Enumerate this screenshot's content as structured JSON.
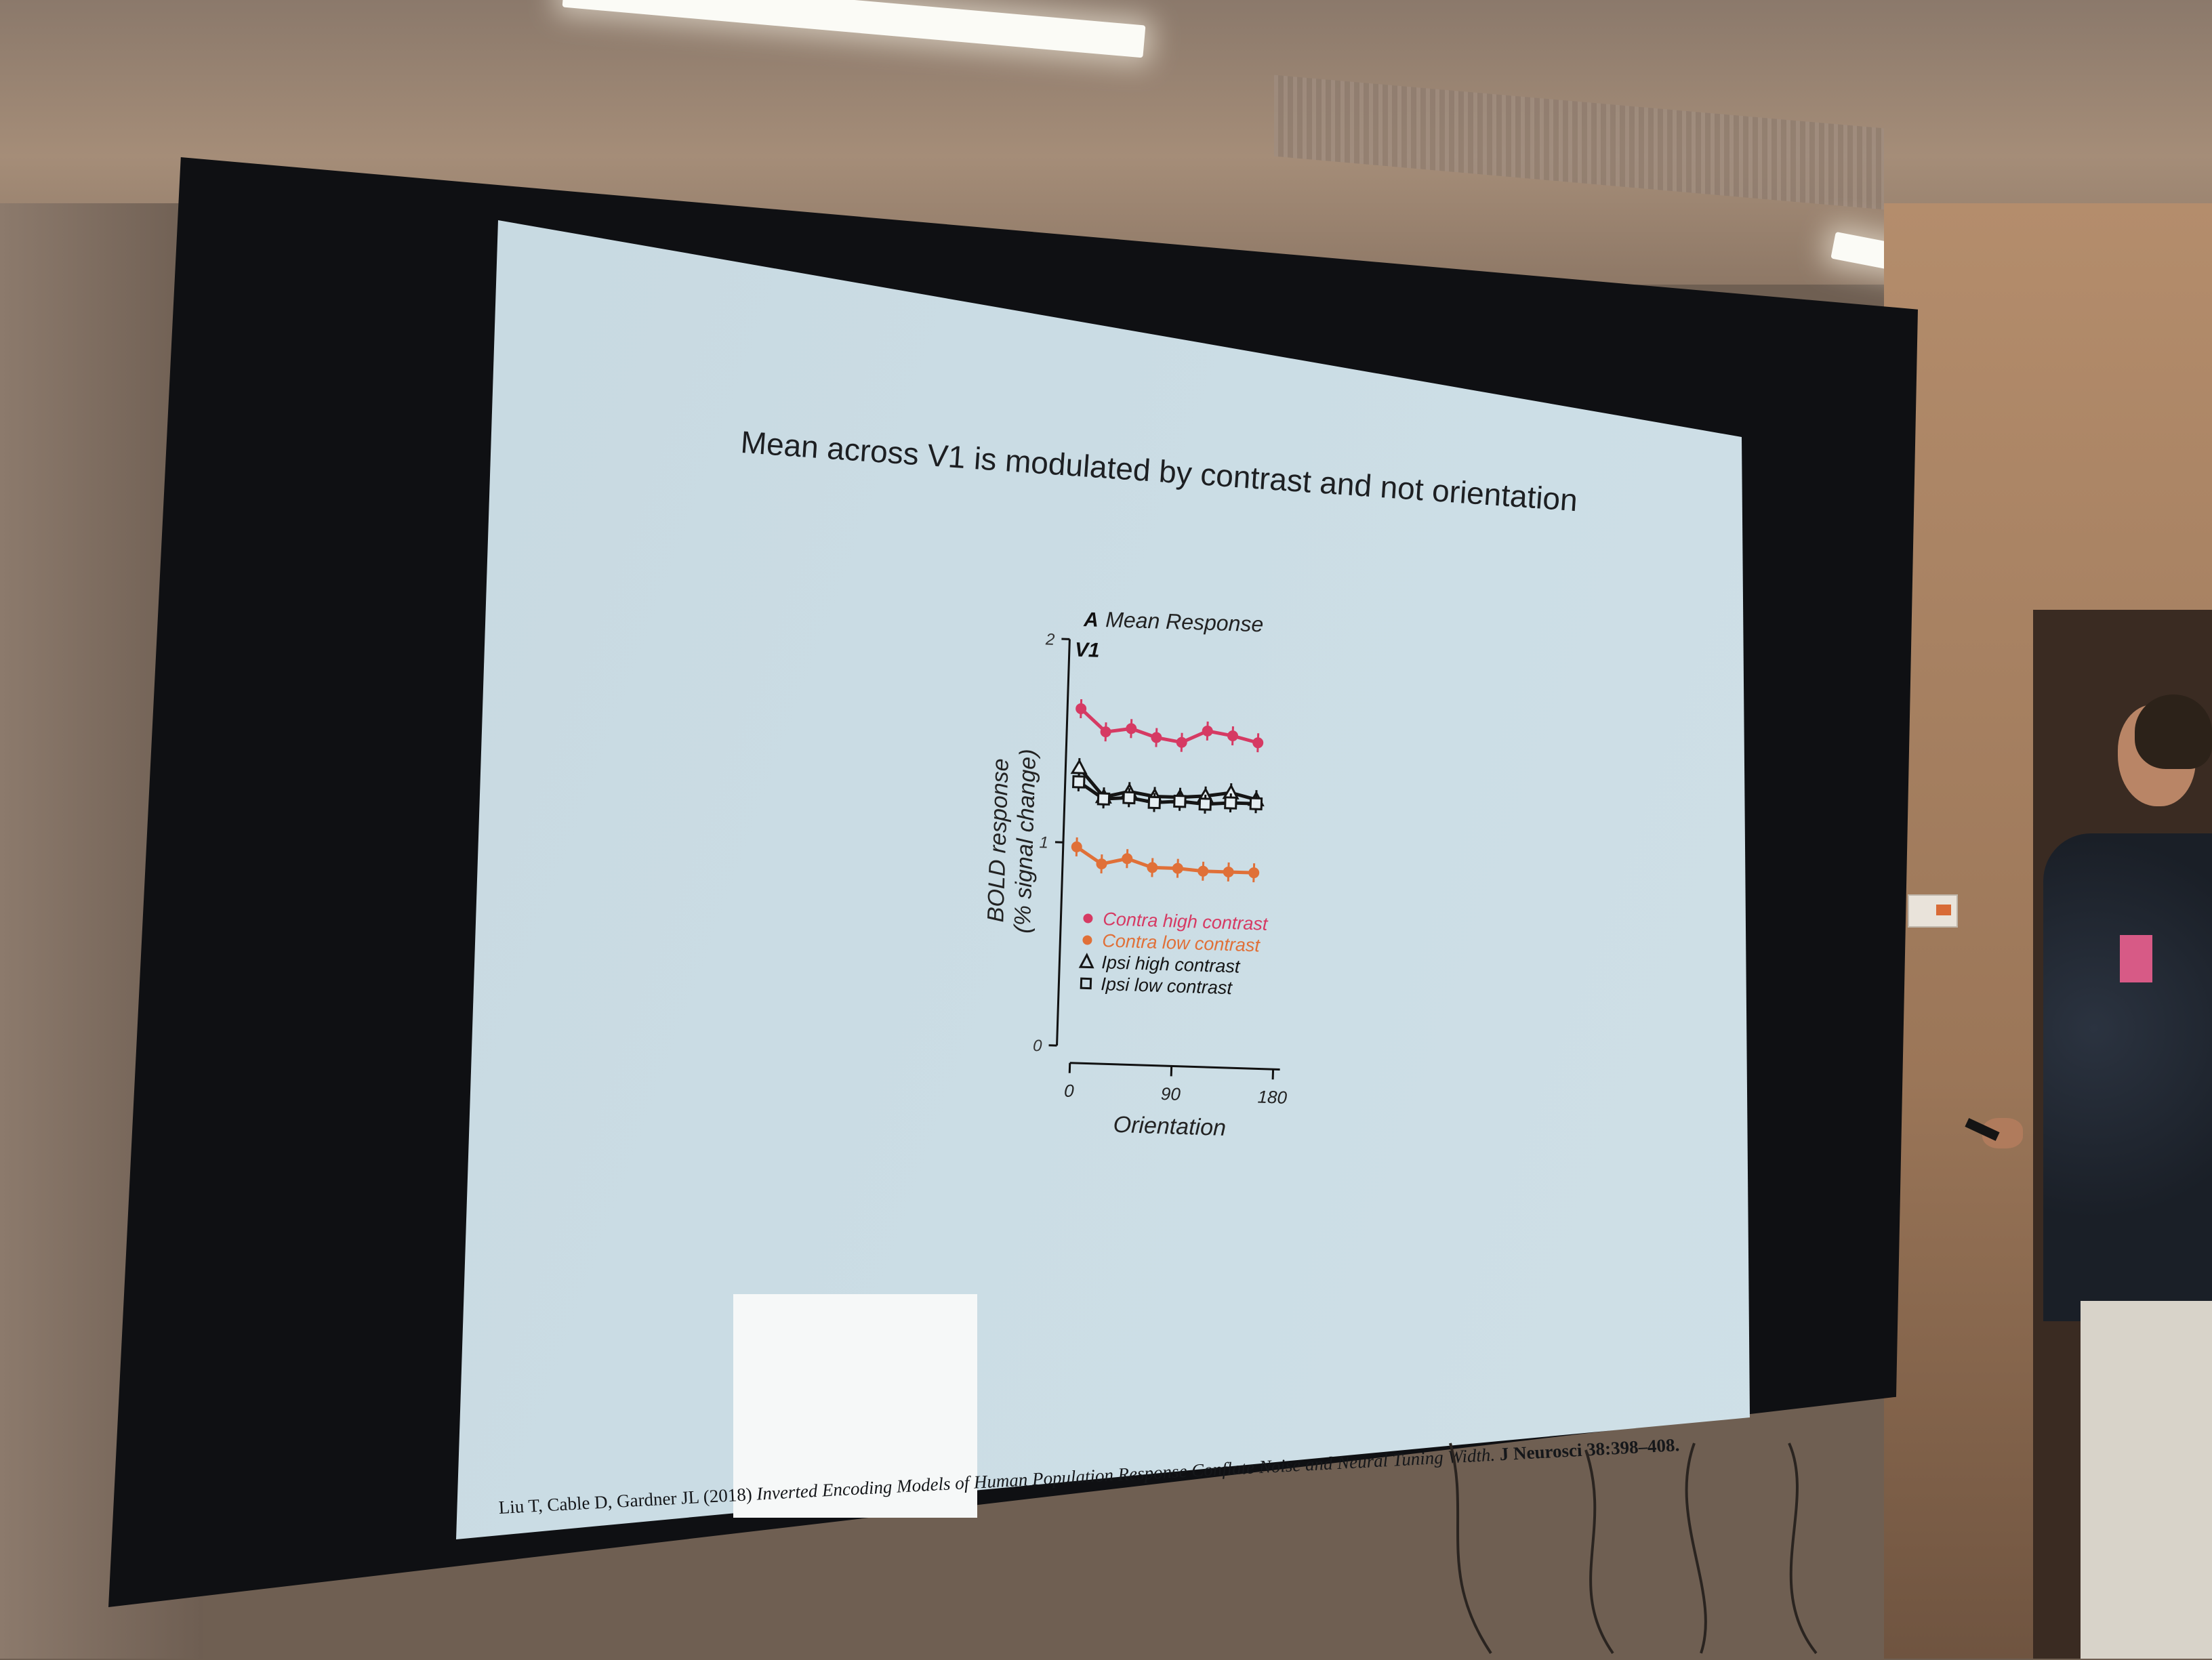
{
  "slide": {
    "title": "Mean across V1 is modulated by contrast and not orientation",
    "citation": {
      "authors": "Liu T, Cable D, Gardner JL (2018)",
      "article": "Inverted Encoding Models of Human Population Response Conflate Noise and Neural Tuning Width.",
      "journal": "J Neurosci 38:398–408."
    }
  },
  "chart_data": {
    "type": "line",
    "panel_letter": "A",
    "title": "Mean Response",
    "subtitle": "V1",
    "xlabel": "Orientation",
    "ylabel": "BOLD response",
    "ylabel2": "(% signal change)",
    "x_ticks": [
      "0",
      "90",
      "180"
    ],
    "y_ticks": [
      "0",
      "1",
      "2"
    ],
    "xlim": [
      0,
      180
    ],
    "ylim": [
      0,
      2
    ],
    "x": [
      0,
      22.5,
      45,
      67.5,
      90,
      112.5,
      135,
      157.5
    ],
    "legend": [
      "Contra high contrast",
      "Contra low contrast",
      "Ipsi high contrast",
      "Ipsi low contrast"
    ],
    "series": [
      {
        "name": "Contra high contrast",
        "marker": "circle",
        "color": "#d63a63",
        "values": [
          1.66,
          1.55,
          1.57,
          1.53,
          1.51,
          1.57,
          1.55,
          1.52
        ]
      },
      {
        "name": "Contra low contrast",
        "marker": "circle",
        "color": "#e07038",
        "values": [
          0.98,
          0.9,
          0.93,
          0.89,
          0.89,
          0.88,
          0.88,
          0.88
        ]
      },
      {
        "name": "Ipsi high contrast",
        "marker": "triangle",
        "color": "#151515",
        "values": [
          1.37,
          1.23,
          1.26,
          1.24,
          1.24,
          1.25,
          1.27,
          1.24
        ]
      },
      {
        "name": "Ipsi low contrast",
        "marker": "square",
        "color": "#151515",
        "values": [
          1.3,
          1.22,
          1.23,
          1.21,
          1.22,
          1.21,
          1.22,
          1.22
        ]
      }
    ]
  }
}
